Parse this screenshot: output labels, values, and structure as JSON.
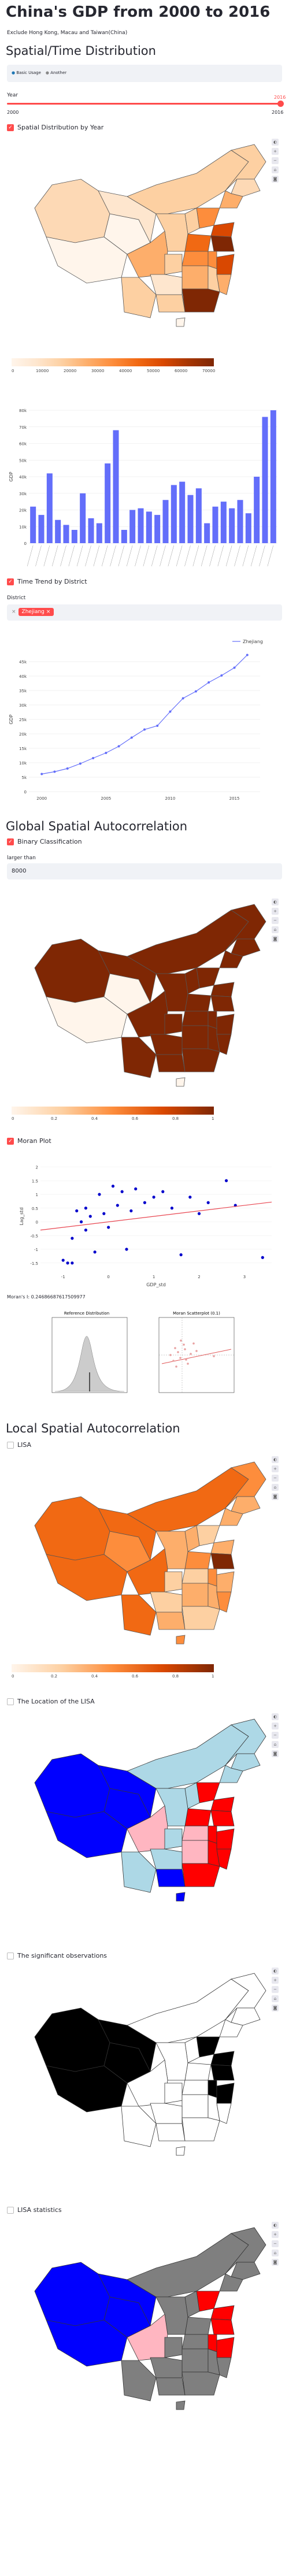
{
  "header": {
    "title": "China's GDP from 2000 to 2016",
    "subtitle": "Exclude Hong Kong, Macau and Taiwan(China)"
  },
  "section1": {
    "heading": "Spatial/Time Distribution",
    "tabs": [
      "Basic Usage",
      "Another"
    ],
    "year_label": "Year",
    "slider": {
      "min": "2000",
      "max": "2016",
      "value": "2016",
      "fraction": 1.0
    },
    "cb_spatial": "Spatial Distribution by Year",
    "colorbar1_ticks": [
      "0",
      "10000",
      "20000",
      "30000",
      "40000",
      "50000",
      "60000",
      "70000"
    ],
    "cb_time": "Time Trend by District",
    "district_label": "District",
    "district_value": "Zhejiang"
  },
  "chart_data": [
    {
      "type": "bar",
      "ylabel": "GDP",
      "ytick_labels": [
        "0",
        "10k",
        "20k",
        "30k",
        "40k",
        "50k",
        "60k",
        "70k",
        "80k"
      ],
      "ylim": [
        0,
        80000
      ],
      "values": [
        22000,
        17000,
        42000,
        14000,
        11000,
        8000,
        30000,
        15000,
        12000,
        48000,
        68000,
        8000,
        20000,
        21000,
        19000,
        17000,
        26000,
        35000,
        37000,
        29000,
        33000,
        12000,
        22000,
        25000,
        21000,
        26000,
        18000,
        40000,
        76000,
        80000
      ]
    },
    {
      "type": "line",
      "series": [
        {
          "name": "Zhejiang",
          "x": [
            2000,
            2001,
            2002,
            2003,
            2004,
            2005,
            2006,
            2007,
            2008,
            2009,
            2010,
            2011,
            2012,
            2013,
            2014,
            2015,
            2016
          ],
          "y": [
            6100,
            6900,
            8000,
            9700,
            11600,
            13400,
            15700,
            18700,
            21500,
            22800,
            27700,
            32300,
            34700,
            37800,
            40200,
            42900,
            47300
          ]
        }
      ],
      "ylabel": "GDP",
      "ylim": [
        0,
        50000
      ],
      "xticks": [
        "2000",
        "2005",
        "2010",
        "2015"
      ],
      "ytick_labels": [
        "0",
        "5k",
        "10k",
        "15k",
        "20k",
        "25k",
        "30k",
        "35k",
        "40k",
        "45k"
      ]
    },
    {
      "type": "scatter",
      "title": "",
      "xlabel": "GDP_std",
      "ylabel": "Lag_std",
      "x": [
        -1.0,
        -0.9,
        -0.8,
        -0.7,
        -0.5,
        -0.5,
        -0.4,
        -0.3,
        -0.2,
        -0.1,
        0.0,
        0.1,
        0.2,
        0.3,
        0.5,
        0.6,
        0.8,
        1.0,
        1.2,
        1.4,
        1.6,
        2.0,
        2.2,
        2.6,
        2.8,
        -0.8,
        -0.6,
        0.4,
        1.8,
        3.4
      ],
      "y": [
        -1.4,
        -1.5,
        -0.6,
        0.4,
        -0.3,
        0.5,
        0.2,
        -1.1,
        1.0,
        0.3,
        -0.2,
        1.3,
        0.6,
        1.1,
        0.4,
        1.2,
        0.7,
        0.9,
        1.1,
        0.5,
        -1.2,
        0.3,
        0.7,
        1.5,
        0.6,
        -1.5,
        0.0,
        -1.0,
        0.9,
        -1.3
      ],
      "fit_line": {
        "slope": 0.2,
        "intercept": 0.0
      },
      "xticks": [
        "-1",
        "0",
        "1",
        "2",
        "3"
      ],
      "yticks": [
        "-1.5",
        "-1",
        "-0.5",
        "0",
        "0.5",
        "1",
        "1.5",
        "2"
      ]
    }
  ],
  "section2": {
    "heading": "Global Spatial Autocorrelation",
    "cb_binary": "Binary Classification",
    "larger_label": "larger than",
    "larger_value": "8000",
    "colorbar2_ticks": [
      "0",
      "0.2",
      "0.4",
      "0.6",
      "0.8",
      "1"
    ],
    "cb_moran": "Moran Plot",
    "moran_text": "Moran's I: 0.24686687617509977",
    "ref_title": "Reference Distribution",
    "ms_title": "Moran Scatterplot (0.1)"
  },
  "section3": {
    "heading": "Local Spatial Autocorrelation",
    "cb_lisa": "LISA",
    "colorbar3_ticks": [
      "0",
      "0.2",
      "0.4",
      "0.6",
      "0.8",
      "1"
    ],
    "cb_location": "The Location of the LISA",
    "cb_significant": "The significant observations",
    "cb_stats": "LISA statistics"
  },
  "colors": {
    "accent": "#ff4b4b",
    "bar": "#636efa",
    "map_dark": "#7f2704",
    "map_mid": "#f16913",
    "map_light": "#fdd0a2",
    "map_pale": "#fff5eb",
    "lisa_hh": "#ff0000",
    "lisa_ll": "#0000ff",
    "lisa_lh": "#add8e6",
    "lisa_hl": "#ffb6c1",
    "grey": "#7f7f7f"
  },
  "toolbar_icons": [
    "palette-icon",
    "zoom-in-icon",
    "zoom-out-icon",
    "home-icon",
    "camera-icon"
  ]
}
